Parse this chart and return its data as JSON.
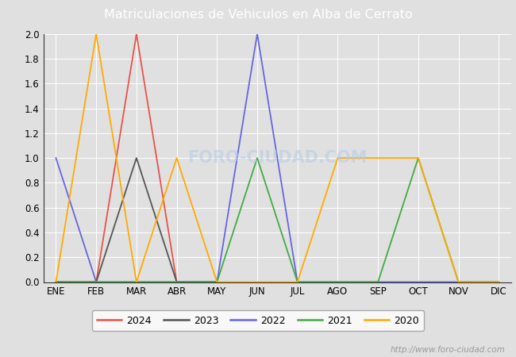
{
  "title": "Matriculaciones de Vehiculos en Alba de Cerrato",
  "months": [
    "ENE",
    "FEB",
    "MAR",
    "ABR",
    "MAY",
    "JUN",
    "JUL",
    "AGO",
    "SEP",
    "OCT",
    "NOV",
    "DIC"
  ],
  "series": {
    "2024": {
      "color": "#e8534a",
      "values": [
        0,
        0,
        2,
        0,
        0,
        null,
        null,
        null,
        null,
        null,
        null,
        null
      ]
    },
    "2023": {
      "color": "#555555",
      "values": [
        0,
        0,
        1,
        0,
        0,
        null,
        null,
        null,
        null,
        null,
        null,
        null
      ]
    },
    "2022": {
      "color": "#6666dd",
      "values": [
        1,
        0,
        0,
        0,
        0,
        2,
        0,
        0,
        0,
        0,
        0,
        0
      ]
    },
    "2021": {
      "color": "#44aa44",
      "values": [
        0,
        0,
        0,
        0,
        0,
        1,
        0,
        0,
        0,
        1,
        0,
        0
      ]
    },
    "2020": {
      "color": "#ffaa00",
      "values": [
        0,
        2,
        0,
        1,
        0,
        0,
        0,
        1,
        1,
        1,
        0,
        0
      ]
    }
  },
  "ylim": [
    0,
    2.0
  ],
  "yticks": [
    0.0,
    0.2,
    0.4,
    0.6,
    0.8,
    1.0,
    1.2,
    1.4,
    1.6,
    1.8,
    2.0
  ],
  "plot_bg_color": "#e0e0e0",
  "fig_bg_color": "#e0e0e0",
  "title_bg_color": "#5b8dc8",
  "title_color": "#ffffff",
  "grid_color": "#ffffff",
  "legend_years": [
    "2024",
    "2023",
    "2022",
    "2021",
    "2020"
  ],
  "watermark_text": "http://www.foro-ciudad.com",
  "foro_watermark": "FORO-CIUDAD.COM"
}
